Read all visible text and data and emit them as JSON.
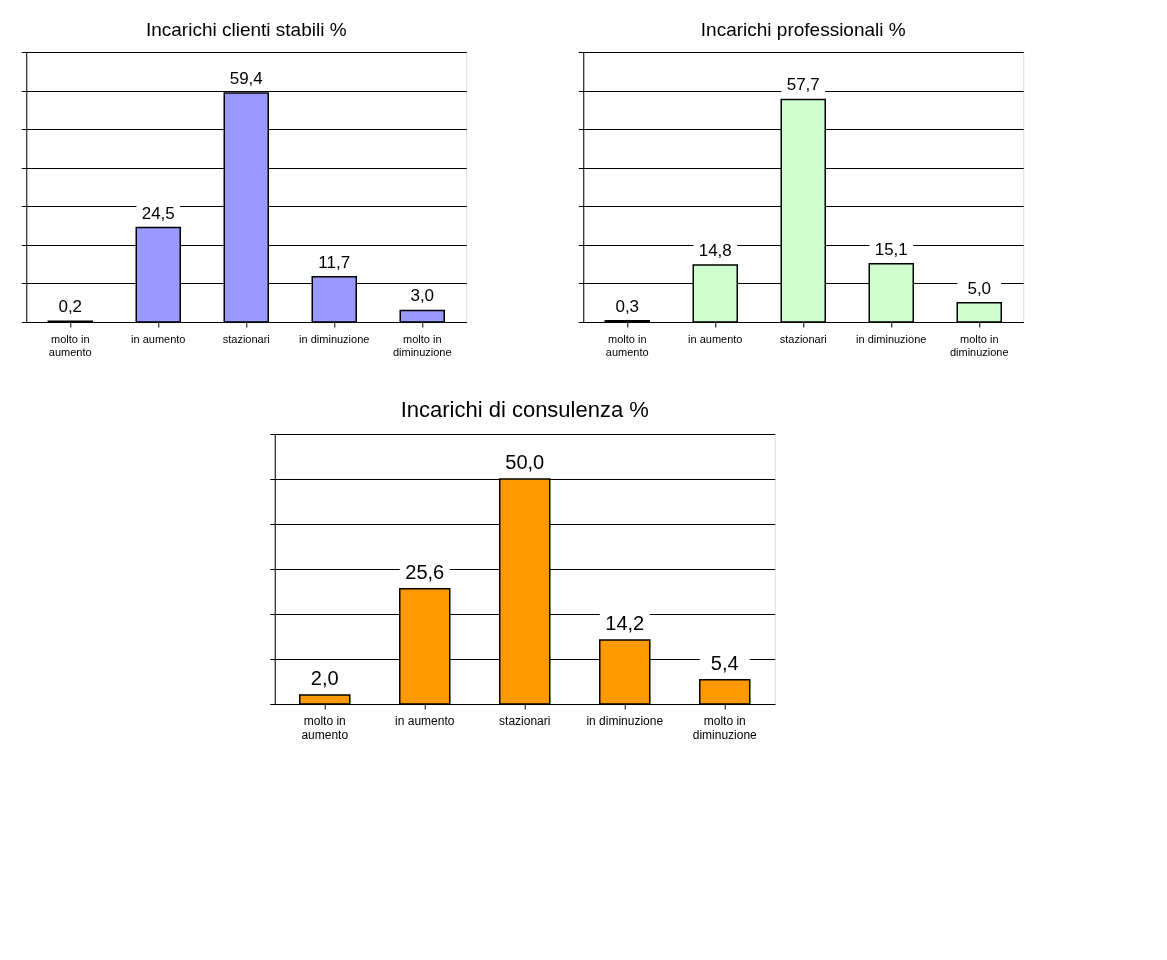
{
  "chart_data": [
    {
      "type": "bar",
      "title": "Incarichi clienti stabili %",
      "categories": [
        "molto in aumento",
        "in aumento",
        "stazionari",
        "in diminuzione",
        "molto in diminuzione"
      ],
      "values": [
        0.2,
        24.5,
        59.4,
        11.7,
        3.0
      ],
      "value_labels": [
        "0,2",
        "24,5",
        "59,4",
        "11,7",
        "3,0"
      ],
      "color": "#9999ff",
      "ylim": [
        0,
        70
      ],
      "yticks": [
        {
          "value": 0,
          "label": null
        },
        {
          "value": 10,
          "label": null
        },
        {
          "value": 20,
          "label": null
        },
        {
          "value": 30,
          "label": null
        },
        {
          "value": 40,
          "label": null
        },
        {
          "value": 50,
          "label": null
        },
        {
          "value": 60,
          "label": null
        },
        {
          "value": 70,
          "label": null
        }
      ],
      "grid": "y",
      "tick_labels": "x"
    },
    {
      "type": "bar",
      "title": "Incarichi professionali %",
      "categories": [
        "molto in aumento",
        "in aumento",
        "stazionari",
        "in diminuzione",
        "molto in diminuzione"
      ],
      "values": [
        0.3,
        14.8,
        57.7,
        15.1,
        5.0
      ],
      "value_labels": [
        "0,3",
        "14,8",
        "57,7",
        "15,1",
        "5,0"
      ],
      "color": "#ccffcc",
      "ylim": [
        0,
        70
      ],
      "yticks": [
        {
          "value": 0,
          "label": null
        },
        {
          "value": 10,
          "label": null
        },
        {
          "value": 20,
          "label": null
        },
        {
          "value": 30,
          "label": null
        },
        {
          "value": 40,
          "label": null
        },
        {
          "value": 50,
          "label": null
        },
        {
          "value": 60,
          "label": null
        },
        {
          "value": 70,
          "label": null
        }
      ],
      "grid": "y",
      "tick_labels": "x"
    },
    {
      "type": "bar",
      "title": "Incarichi di consulenza %",
      "categories": [
        "molto in aumento",
        "in aumento",
        "stazionari",
        "in diminuzione",
        "molto in diminuzione"
      ],
      "values": [
        2.0,
        25.6,
        50.0,
        14.2,
        5.4
      ],
      "value_labels": [
        "2,0",
        "25,6",
        "50,0",
        "14,2",
        "5,4"
      ],
      "color": "#ff9900",
      "ylim": [
        0,
        60
      ],
      "yticks": [
        {
          "value": 0,
          "label": null
        },
        {
          "value": 10,
          "label": null
        },
        {
          "value": 20,
          "label": null
        },
        {
          "value": 30,
          "label": null
        },
        {
          "value": 40,
          "label": null
        },
        {
          "value": 50,
          "label": null
        },
        {
          "value": 60,
          "label": null
        }
      ],
      "grid": "y",
      "tick_labels": "x"
    }
  ]
}
